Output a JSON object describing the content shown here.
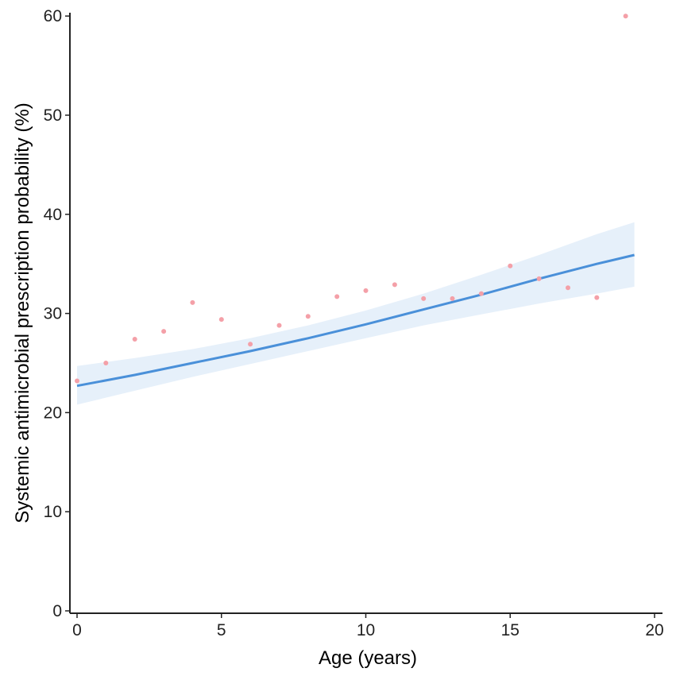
{
  "chart_data": {
    "type": "scatter",
    "xlabel": "Age (years)",
    "ylabel": "Systemic antimicrobial prescription probability (%)",
    "xlim": [
      0,
      20
    ],
    "ylim": [
      0,
      60
    ],
    "x_ticks": [
      "0",
      "5",
      "10",
      "15",
      "20"
    ],
    "y_ticks": [
      "0",
      "10",
      "20",
      "30",
      "40",
      "50",
      "60"
    ],
    "grid": false,
    "legend": "none",
    "points": {
      "x": [
        0,
        1,
        2,
        3,
        4,
        5,
        6,
        7,
        8,
        9,
        10,
        11,
        12,
        13,
        14,
        15,
        16,
        17,
        18,
        19
      ],
      "y": [
        23.2,
        25.0,
        27.4,
        28.2,
        31.1,
        29.4,
        26.9,
        28.8,
        29.7,
        31.7,
        32.3,
        32.9,
        31.5,
        31.5,
        32.0,
        34.8,
        33.5,
        32.6,
        31.6,
        60.0
      ]
    },
    "fit": {
      "x": [
        0,
        2,
        4,
        6,
        8,
        10,
        12,
        14,
        16,
        18,
        19.3
      ],
      "y": [
        22.7,
        23.8,
        25.0,
        26.2,
        27.5,
        28.9,
        30.4,
        31.9,
        33.5,
        35.0,
        35.9
      ],
      "ci_lower": [
        20.8,
        22.2,
        23.6,
        24.9,
        26.2,
        27.5,
        28.8,
        29.9,
        31.0,
        32.0,
        32.7
      ],
      "ci_upper": [
        24.7,
        25.5,
        26.4,
        27.5,
        28.8,
        30.3,
        32.0,
        33.9,
        35.9,
        38.0,
        39.2
      ]
    },
    "colors": {
      "points": "#f4a0a8",
      "fit_line": "#4a90d9",
      "ci_band": "#e6f0fa",
      "axis": "#222222"
    }
  }
}
